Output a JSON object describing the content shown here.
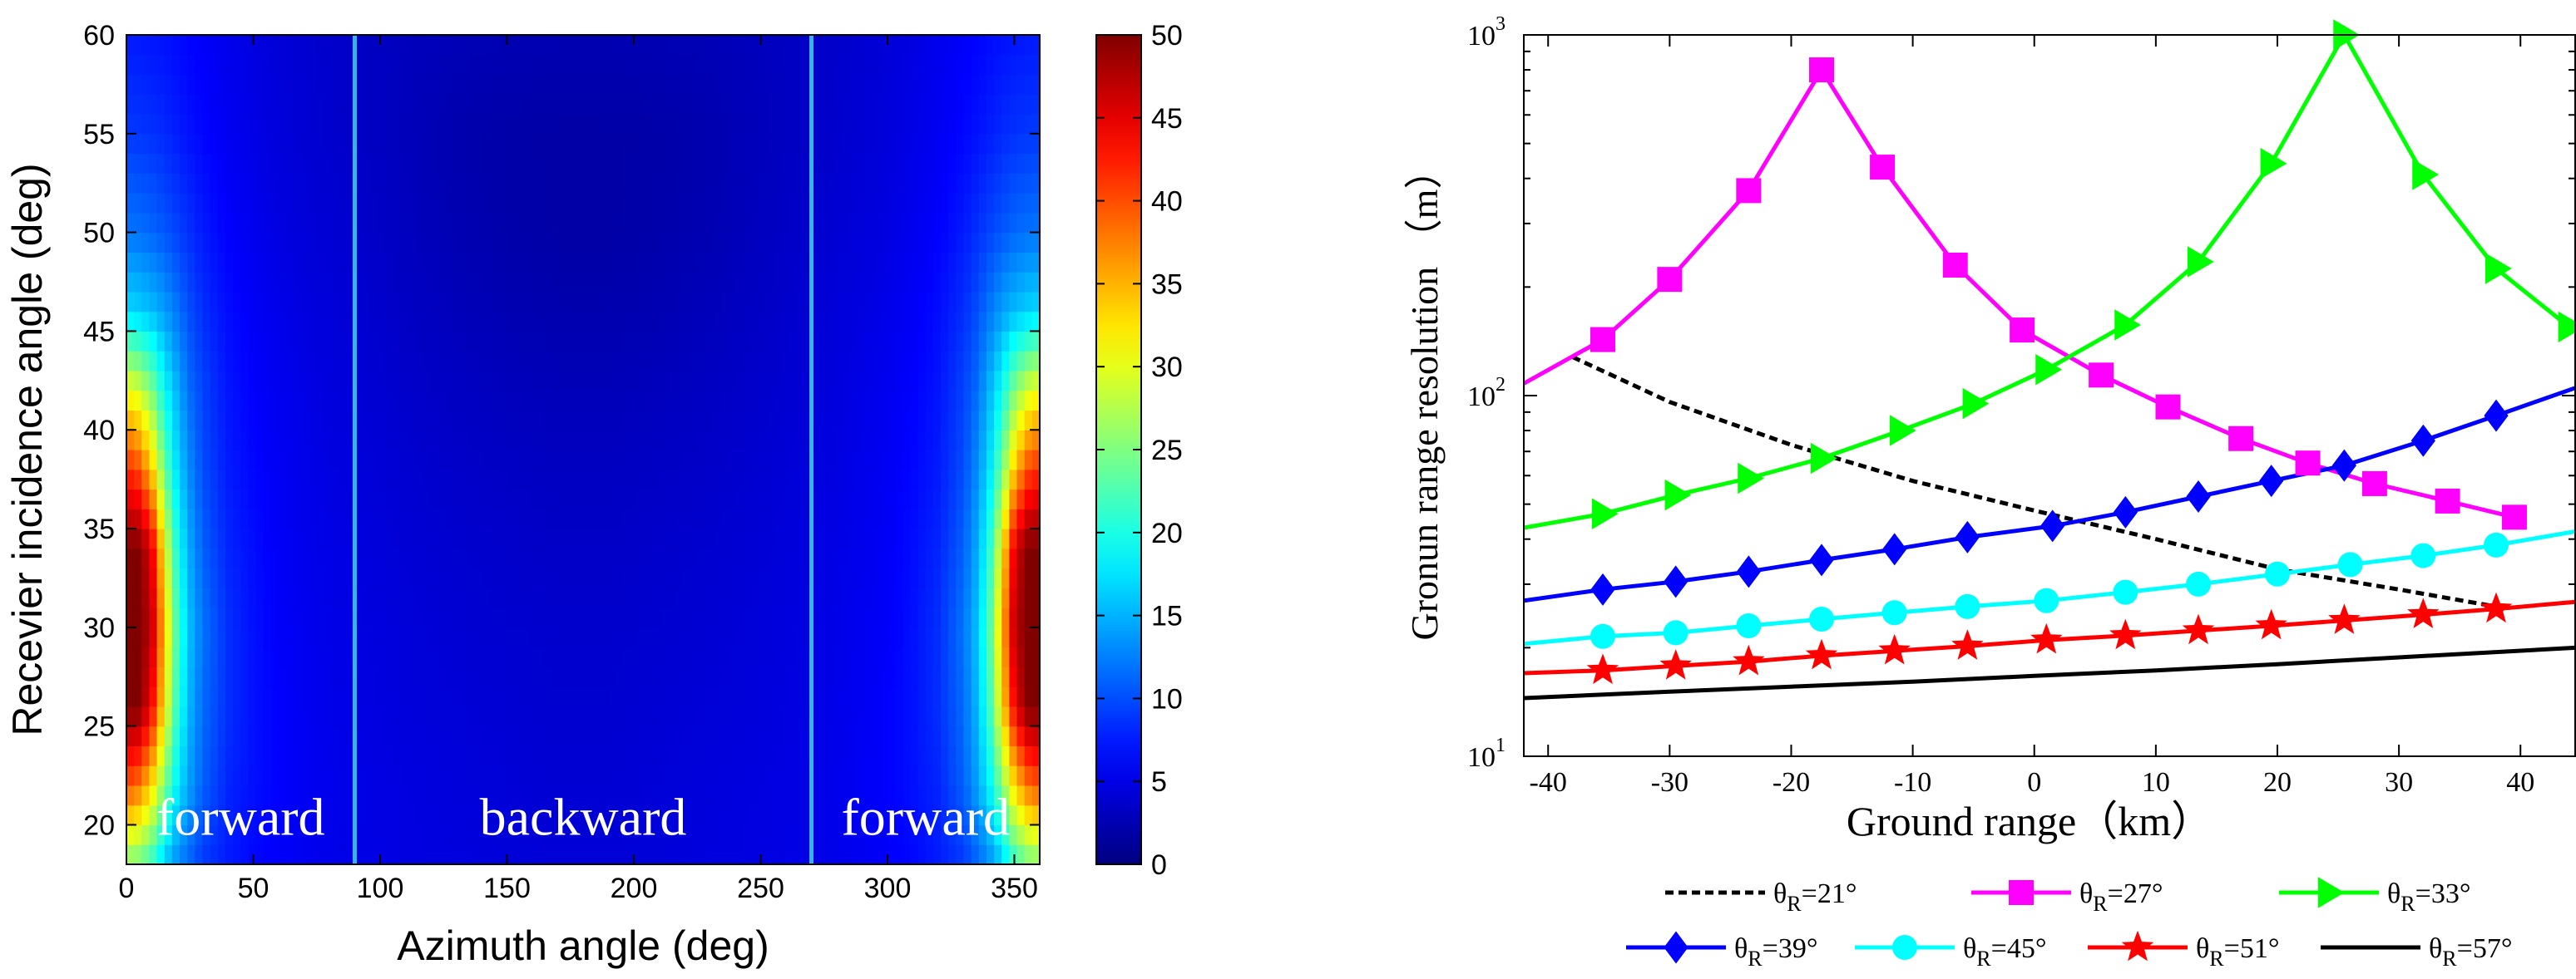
{
  "chart_data": [
    {
      "type": "heatmap",
      "xlabel": "Azimuth angle (deg)",
      "ylabel": "Recevier incidence angle (deg)",
      "xlim": [
        0,
        360
      ],
      "ylim": [
        18,
        60
      ],
      "xticks": [
        "0",
        "50",
        "100",
        "150",
        "200",
        "250",
        "300",
        "350"
      ],
      "xtick_values": [
        0,
        50,
        100,
        150,
        200,
        250,
        300,
        350
      ],
      "yticks": [
        "20",
        "25",
        "30",
        "35",
        "40",
        "45",
        "50",
        "55",
        "60"
      ],
      "ytick_values": [
        20,
        25,
        30,
        35,
        40,
        45,
        50,
        55,
        60
      ],
      "colorbar": {
        "min": 0,
        "max": 50,
        "ticks": [
          "0",
          "5",
          "10",
          "15",
          "20",
          "25",
          "30",
          "35",
          "40",
          "45",
          "50"
        ],
        "tick_values": [
          0,
          5,
          10,
          15,
          20,
          25,
          30,
          35,
          40,
          45,
          50
        ],
        "colormap": "jet"
      },
      "divider_lines": [
        {
          "azimuth": 90,
          "color": "#36b4e8"
        },
        {
          "azimuth": 270,
          "color": "#36b4e8"
        }
      ],
      "region_labels": [
        {
          "text": "forward",
          "azimuth": 45,
          "angle": 19.5
        },
        {
          "text": "backward",
          "azimuth": 180,
          "angle": 19.5
        },
        {
          "text": "forward",
          "azimuth": 315,
          "angle": 19.5
        }
      ],
      "approx_values": {
        "angle_rows": [
          18,
          22,
          26,
          30,
          34,
          38,
          42,
          46,
          50,
          55,
          60
        ],
        "azimuth_cols": [
          0,
          5,
          10,
          15,
          20,
          25,
          30,
          40,
          50,
          60,
          70,
          80,
          90,
          110,
          130,
          150,
          170,
          180
        ],
        "symmetric_about": 180,
        "values": [
          [
            25,
            24,
            21,
            16,
            13,
            11,
            9,
            7.5,
            6.5,
            6,
            5.5,
            5.2,
            5.0,
            4.8,
            4.6,
            4.4,
            4.3,
            4.3
          ],
          [
            40,
            38,
            33,
            25,
            18,
            14,
            11,
            8,
            7,
            6.2,
            5.7,
            5.3,
            5.0,
            4.7,
            4.5,
            4.3,
            4.1,
            4.1
          ],
          [
            50,
            50,
            44,
            32,
            21,
            15,
            11.5,
            8.5,
            7,
            6.2,
            5.6,
            5.2,
            4.9,
            4.5,
            4.3,
            4.1,
            3.9,
            3.9
          ],
          [
            50,
            50,
            47,
            34,
            22,
            15.5,
            12,
            8.5,
            7,
            6,
            5.5,
            5.1,
            4.8,
            4.4,
            4.1,
            3.9,
            3.8,
            3.8
          ],
          [
            50,
            50,
            45,
            31,
            20,
            14.5,
            11,
            8,
            6.8,
            5.9,
            5.3,
            5.0,
            4.7,
            4.2,
            3.9,
            3.7,
            3.5,
            3.5
          ],
          [
            42,
            40,
            34,
            24,
            17,
            13,
            10,
            7.5,
            6.5,
            5.7,
            5.2,
            4.8,
            4.5,
            4.0,
            3.6,
            3.4,
            3.2,
            3.2
          ],
          [
            31,
            29,
            25,
            19,
            15,
            11.5,
            9.5,
            7.2,
            6.2,
            5.5,
            5.0,
            4.6,
            4.3,
            3.7,
            3.3,
            3.0,
            2.8,
            2.8
          ],
          [
            17,
            16.5,
            15.5,
            14,
            12,
            10,
            8.5,
            6.8,
            5.8,
            5.2,
            4.7,
            4.4,
            4.1,
            3.4,
            2.9,
            2.5,
            2.3,
            2.3
          ],
          [
            12,
            11.8,
            11.3,
            10.5,
            9.5,
            8.5,
            7.5,
            6.2,
            5.4,
            4.8,
            4.4,
            4.1,
            3.8,
            3.1,
            2.5,
            2.1,
            1.9,
            1.9
          ],
          [
            9,
            8.9,
            8.6,
            8.2,
            7.6,
            7.0,
            6.5,
            5.6,
            5.0,
            4.5,
            4.1,
            3.8,
            3.5,
            2.9,
            2.3,
            2.0,
            1.9,
            1.9
          ],
          [
            7.5,
            7.4,
            7.2,
            7.0,
            6.7,
            6.3,
            6.0,
            5.3,
            4.8,
            4.3,
            4.0,
            3.7,
            3.5,
            3.0,
            2.7,
            2.6,
            2.5,
            2.5
          ]
        ]
      }
    },
    {
      "type": "line",
      "xlabel": "Ground range（km）",
      "ylabel": "Gronun range resolution （m）",
      "xlim": [
        -42,
        44.5
      ],
      "yscale": "log",
      "ylim": [
        10,
        1000
      ],
      "xticks": [
        "-40",
        "-30",
        "-20",
        "-10",
        "0",
        "10",
        "20",
        "30",
        "40"
      ],
      "xtick_values": [
        -40,
        -30,
        -20,
        -10,
        0,
        10,
        20,
        30,
        40
      ],
      "ytick_base": "10",
      "ytick_exponents": [
        "1",
        "2",
        "3"
      ],
      "ytick_values": [
        10,
        100,
        1000
      ],
      "legend_placement": "bottom",
      "series": [
        {
          "name_prefix": "θ",
          "name_sub": "R",
          "name_suffix": "=21°",
          "color": "#000000",
          "dash": "10,6",
          "marker": "none",
          "x": [
            -38,
            -30,
            -20,
            -10,
            0,
            10,
            20,
            30,
            38
          ],
          "y": [
            128,
            96,
            73,
            58,
            48,
            40,
            33,
            29,
            26
          ]
        },
        {
          "name_prefix": "θ",
          "name_sub": "R",
          "name_suffix": "=27°",
          "color": "#ff00ff",
          "dash": "",
          "marker": "square",
          "x": [
            -42,
            -35.5,
            -30,
            -23.5,
            -17.5,
            -12.5,
            -6.5,
            -1,
            5.5,
            11,
            17,
            22.5,
            28,
            34,
            39.5
          ],
          "y": [
            108,
            143,
            210,
            370,
            800,
            430,
            230,
            152,
            114,
            93,
            76,
            65,
            57,
            51,
            46
          ]
        },
        {
          "name_prefix": "θ",
          "name_sub": "R",
          "name_suffix": "=33°",
          "color": "#00ff00",
          "dash": "",
          "marker": "triangle-right",
          "x": [
            -42,
            -35.5,
            -29.5,
            -23.5,
            -17.5,
            -11,
            -5,
            1,
            7.5,
            13.5,
            19.5,
            25.5,
            32,
            38,
            44
          ],
          "y": [
            43,
            47,
            53,
            59,
            67,
            80,
            95,
            118,
            157,
            235,
            440,
            1000,
            410,
            225,
            155
          ]
        },
        {
          "name_prefix": "θ",
          "name_sub": "R",
          "name_suffix": "=39°",
          "color": "#0000ff",
          "dash": "",
          "marker": "diamond",
          "x": [
            -42,
            -35.5,
            -29.5,
            -23.5,
            -17.5,
            -11.5,
            -5.5,
            1.5,
            7.5,
            13.5,
            19.5,
            25.5,
            32,
            38,
            44.5
          ],
          "y": [
            27,
            29,
            30.5,
            32.5,
            35,
            37.5,
            40.5,
            43.5,
            47.5,
            52.5,
            58,
            64,
            75,
            88,
            105
          ]
        },
        {
          "name_prefix": "θ",
          "name_sub": "R",
          "name_suffix": "=45°",
          "color": "#00ffff",
          "dash": "",
          "marker": "circle",
          "x": [
            -42,
            -35.5,
            -29.5,
            -23.5,
            -17.5,
            -11.5,
            -5.5,
            1,
            7.5,
            13.5,
            20,
            26,
            32,
            38,
            44.5
          ],
          "y": [
            20.5,
            21.5,
            22,
            23,
            24,
            25,
            26,
            27,
            28.5,
            30,
            32,
            34,
            36,
            38.5,
            42
          ]
        },
        {
          "name_prefix": "θ",
          "name_sub": "R",
          "name_suffix": "=51°",
          "color": "#ff0000",
          "dash": "",
          "marker": "star",
          "x": [
            -42,
            -35.5,
            -29.5,
            -23.5,
            -17.5,
            -11.5,
            -5.5,
            1,
            7.5,
            13.5,
            19.5,
            25.5,
            32,
            38,
            44.5
          ],
          "y": [
            17,
            17.3,
            17.8,
            18.3,
            19,
            19.6,
            20.2,
            21,
            21.6,
            22.3,
            23,
            23.8,
            24.7,
            25.6,
            26.8
          ]
        },
        {
          "name_prefix": "θ",
          "name_sub": "R",
          "name_suffix": "=57°",
          "color": "#000000",
          "dash": "",
          "marker": "none",
          "x": [
            -42,
            -30,
            -20,
            -10,
            0,
            10,
            20,
            30,
            44.5
          ],
          "y": [
            14.5,
            15.1,
            15.6,
            16.1,
            16.7,
            17.3,
            18,
            18.8,
            20
          ]
        }
      ]
    }
  ]
}
